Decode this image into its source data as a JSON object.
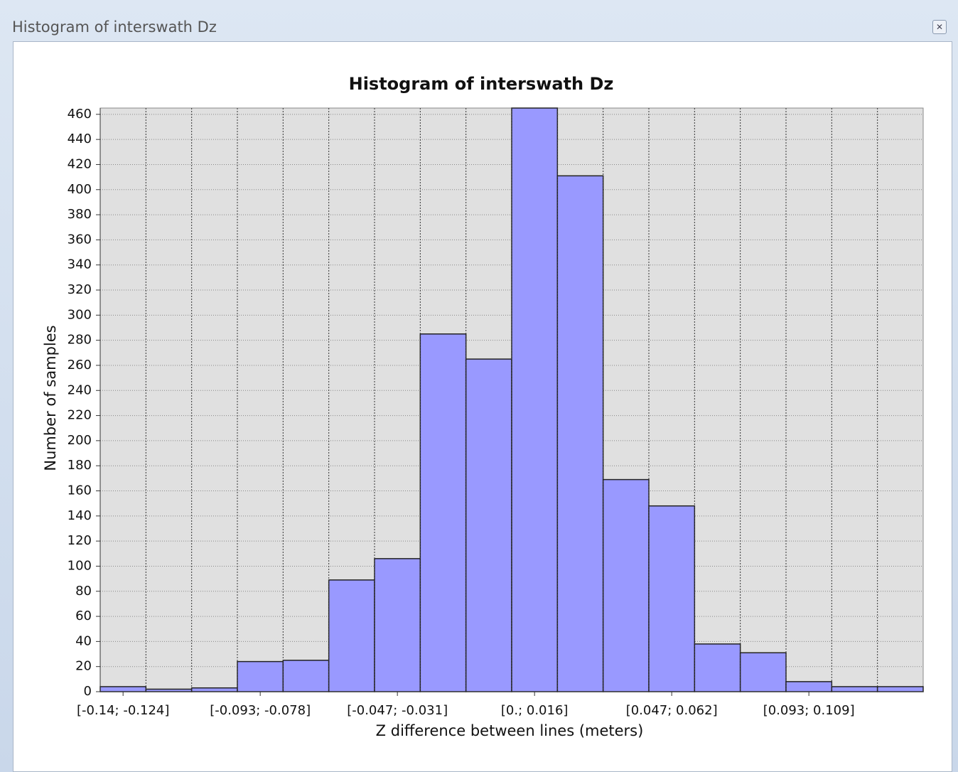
{
  "window": {
    "title": "Histogram of interswath Dz"
  },
  "chart_data": {
    "type": "bar",
    "title": "Histogram of interswath Dz",
    "x_label": "Z difference between lines (meters)",
    "y_label": "Number of samples",
    "categories": [
      "[-0.14; -0.124]",
      null,
      null,
      "[-0.093; -0.078]",
      null,
      null,
      "[-0.047; -0.031]",
      null,
      null,
      "[0.; 0.016]",
      null,
      null,
      "[0.047; 0.062]",
      null,
      null,
      "[0.093; 0.109]",
      null,
      null
    ],
    "values": [
      4,
      2,
      3,
      24,
      25,
      89,
      106,
      285,
      265,
      465,
      411,
      169,
      148,
      38,
      31,
      8,
      4,
      4
    ],
    "color": "#9999ff",
    "ylim": [
      0,
      465
    ],
    "yticks": [
      0,
      20,
      40,
      60,
      80,
      100,
      120,
      140,
      160,
      180,
      200,
      220,
      240,
      260,
      280,
      300,
      320,
      340,
      360,
      380,
      400,
      420,
      440,
      460
    ],
    "grid": true
  }
}
